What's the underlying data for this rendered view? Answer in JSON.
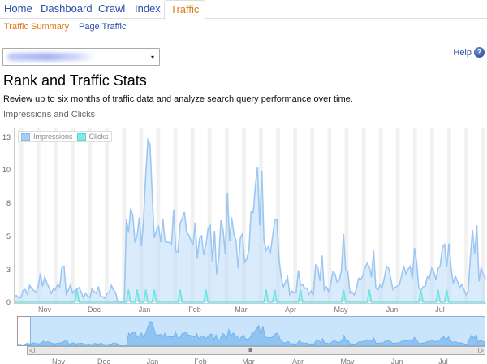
{
  "tabs": [
    {
      "label": "Home",
      "active": false
    },
    {
      "label": "Dashboard",
      "active": false
    },
    {
      "label": "Crawl",
      "active": false
    },
    {
      "label": "Index",
      "active": false
    },
    {
      "label": "Traffic",
      "active": true
    }
  ],
  "subtabs": [
    {
      "label": "Traffic Summary",
      "active": true
    },
    {
      "label": "Page Traffic",
      "active": false
    }
  ],
  "site_select": {
    "value": "(blurred site URL)",
    "arrow": "▾"
  },
  "help": {
    "label": "Help",
    "icon": "?"
  },
  "page": {
    "title": "Rank and Traffic Stats",
    "description": "Review up to six months of traffic data and analyze search query performance over time."
  },
  "chart": {
    "title": "Impressions and Clicks",
    "legend": [
      {
        "name": "Impressions",
        "color": "#a9cdf5"
      },
      {
        "name": "Clicks",
        "color": "#7eeaea"
      }
    ],
    "y_ticks": [
      "13",
      "10",
      "8",
      "5",
      "3",
      "0"
    ],
    "x_ticks": [
      "Nov",
      "Dec",
      "Jan",
      "Feb",
      "Mar",
      "Apr",
      "May",
      "Jun",
      "Jul"
    ],
    "navigator_x_ticks": [
      "Nov",
      "Dec",
      "Jan",
      "Feb",
      "Mar",
      "Apr",
      "May",
      "Jun",
      "Jul"
    ],
    "scroll_grip": "IIIII",
    "scroll_left": "◁",
    "scroll_right": "▷"
  },
  "chart_data": {
    "type": "area",
    "title": "Impressions and Clicks",
    "xlabel": "",
    "ylabel": "",
    "ylim": [
      0,
      13
    ],
    "x_ticks": [
      "Nov",
      "Dec",
      "Jan",
      "Feb",
      "Mar",
      "Apr",
      "May",
      "Jun",
      "Jul"
    ],
    "y_ticks": [
      0,
      3,
      5,
      8,
      10,
      13
    ],
    "grid": "vertical alternating weekly bands",
    "legend_position": "top-left inside plot",
    "series": [
      {
        "name": "Impressions",
        "color": "#a9cdf5",
        "description": "~1 Nov-Dec with spikes to 3; jump to 5-6 in Jan with peak ~11; 4-7 through Feb-Mar with peaks ~8; drops to 0-3 after mid-Mar with spikes up to ~5 in Apr-Jul",
        "approx_weekly_values": [
          0.5,
          1,
          1,
          2,
          1,
          2,
          1,
          1,
          0.5,
          1,
          0.5,
          1,
          0,
          6,
          7,
          11,
          6,
          5,
          6,
          5,
          4,
          6,
          5,
          4,
          6,
          5,
          4,
          6,
          8,
          7,
          5,
          2,
          1,
          2,
          1,
          3,
          1,
          2,
          4,
          1,
          2,
          3,
          1,
          2,
          1,
          2,
          3,
          1,
          2,
          3,
          4,
          2,
          1,
          5,
          2
        ]
      },
      {
        "name": "Clicks",
        "color": "#7eeaea",
        "description": "mostly 0 with occasional spikes of ~1",
        "approx_weekly_values": [
          0,
          0,
          0,
          0,
          0,
          0,
          0,
          1,
          0,
          0,
          0,
          0,
          0,
          1,
          1,
          1,
          1,
          0,
          0,
          1,
          0,
          0,
          1,
          0,
          0,
          0,
          0,
          0,
          0,
          1,
          1,
          0,
          0,
          1,
          0,
          0,
          0,
          0,
          1,
          0,
          0,
          1,
          0,
          0,
          0,
          0,
          0,
          1,
          0,
          1,
          1,
          0,
          0,
          0,
          0
        ]
      }
    ]
  }
}
